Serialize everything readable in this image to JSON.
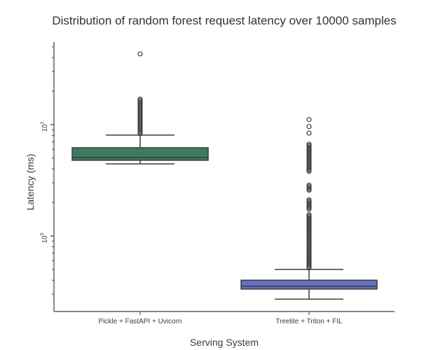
{
  "chart_data": {
    "type": "box",
    "title": "Distribution of random forest request latency over 10000 samples",
    "xlabel": "Serving System",
    "ylabel": "Latency (ms)",
    "yscale": "log",
    "ylim": [
      0.2,
      60
    ],
    "y_major_ticks": [
      {
        "value": 1,
        "label": "10^0"
      },
      {
        "value": 10,
        "label": "10^1"
      }
    ],
    "grid": false,
    "categories": [
      "Pickle + FastAPI + Uvicorn",
      "Treelite + Triton + FIL"
    ],
    "series": [
      {
        "name": "Pickle + FastAPI + Uvicorn",
        "color": "#3f7a5f",
        "whisker_low": 4.44,
        "q1": 4.78,
        "median": 5.06,
        "q3": 6.2,
        "whisker_high": 8.05,
        "outliers_dense_range": [
          8.05,
          17.3
        ],
        "outliers_isolated": [
          43.2
        ]
      },
      {
        "name": "Treelite + Triton + FIL",
        "color": "#6670c0",
        "whisker_low": 0.27,
        "q1": 0.333,
        "median": 0.353,
        "q3": 0.4,
        "whisker_high": 0.5,
        "outliers_dense_range": [
          0.5,
          6.8
        ],
        "outliers_isolated": [
          8.4,
          9.6,
          11.1
        ]
      }
    ]
  },
  "labels": {
    "title": "Distribution of random forest request latency over 10000 samples",
    "xlabel": "Serving System",
    "ylabel": "Latency (ms)",
    "ytick_10": "10",
    "ytick_10_exp": "1",
    "ytick_1": "10",
    "ytick_1_exp": "0",
    "cat0": "Pickle + FastAPI + Uvicorn",
    "cat1": "Treelite + Triton + FIL"
  }
}
